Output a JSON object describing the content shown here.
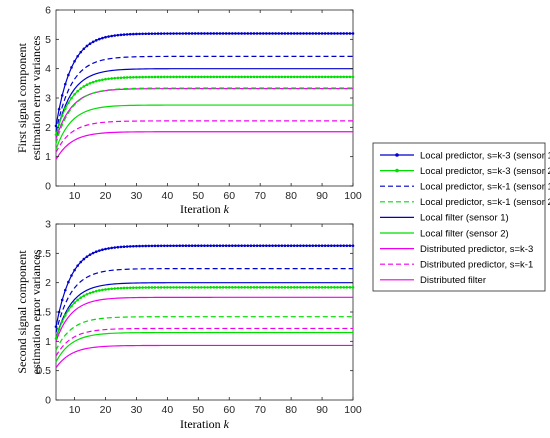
{
  "chart_data": [
    {
      "type": "line",
      "xlabel": "Iteration",
      "xlabel_var": "k",
      "ylabel": [
        "First signal component",
        "estimation error variances"
      ],
      "xlim": [
        4,
        100
      ],
      "ylim": [
        0,
        6
      ],
      "xticks": [
        10,
        20,
        30,
        40,
        50,
        60,
        70,
        80,
        90,
        100
      ],
      "yticks": [
        0,
        1,
        2,
        3,
        4,
        5,
        6
      ],
      "grid": false,
      "series": [
        {
          "name": "Local predictor, s=k-3 (sensor 1)",
          "color": "#0000cc",
          "style": "solid",
          "marker": "dot",
          "y0": 2.05,
          "yinf": 5.2
        },
        {
          "name": "Local predictor, s=k-3 (sensor 2)",
          "color": "#00dd00",
          "style": "solid",
          "marker": "dot",
          "y0": 1.75,
          "yinf": 3.72
        },
        {
          "name": "Local predictor, s=k-1 (sensor 1)",
          "color": "#0000cc",
          "style": "dashed",
          "marker": "none",
          "y0": 1.85,
          "yinf": 4.42
        },
        {
          "name": "Local predictor, s=k-1 (sensor 2)",
          "color": "#00dd00",
          "style": "dashed",
          "marker": "none",
          "y0": 1.45,
          "yinf": 3.34
        },
        {
          "name": "Local filter (sensor 1)",
          "color": "#0000cc",
          "style": "solid",
          "marker": "none",
          "y0": 1.7,
          "yinf": 4.0
        },
        {
          "name": "Local filter (sensor 2)",
          "color": "#00dd00",
          "style": "solid",
          "marker": "none",
          "y0": 1.25,
          "yinf": 2.76
        },
        {
          "name": "Distributed predictor, s=k-3",
          "color": "#ee00ee",
          "style": "solid",
          "marker": "none",
          "y0": 1.6,
          "yinf": 3.32
        },
        {
          "name": "Distributed predictor, s=k-1",
          "color": "#ee00ee",
          "style": "dashed",
          "marker": "none",
          "y0": 1.15,
          "yinf": 2.22
        },
        {
          "name": "Distributed filter",
          "color": "#ee00ee",
          "style": "solid",
          "marker": "none",
          "y0": 0.9,
          "yinf": 1.85
        }
      ]
    },
    {
      "type": "line",
      "xlabel": "Iteration",
      "xlabel_var": "k",
      "ylabel": [
        "Second signal component",
        "estimation error variances"
      ],
      "xlim": [
        4,
        100
      ],
      "ylim": [
        0,
        3
      ],
      "xticks": [
        10,
        20,
        30,
        40,
        50,
        60,
        70,
        80,
        90,
        100
      ],
      "yticks": [
        0,
        0.5,
        1,
        1.5,
        2,
        2.5,
        3
      ],
      "grid": false,
      "series": [
        {
          "name": "Local predictor, s=k-3 (sensor 1)",
          "color": "#0000cc",
          "style": "solid",
          "marker": "dot",
          "y0": 1.25,
          "yinf": 2.63
        },
        {
          "name": "Local predictor, s=k-3 (sensor 2)",
          "color": "#00dd00",
          "style": "solid",
          "marker": "dot",
          "y0": 1.05,
          "yinf": 1.92
        },
        {
          "name": "Local predictor, s=k-1 (sensor 1)",
          "color": "#0000cc",
          "style": "dashed",
          "marker": "none",
          "y0": 1.15,
          "yinf": 2.24
        },
        {
          "name": "Local predictor, s=k-1 (sensor 2)",
          "color": "#00dd00",
          "style": "dashed",
          "marker": "none",
          "y0": 0.85,
          "yinf": 1.42
        },
        {
          "name": "Local filter (sensor 1)",
          "color": "#0000cc",
          "style": "solid",
          "marker": "none",
          "y0": 1.05,
          "yinf": 2.0
        },
        {
          "name": "Local filter (sensor 2)",
          "color": "#00dd00",
          "style": "solid",
          "marker": "none",
          "y0": 0.65,
          "yinf": 1.15
        },
        {
          "name": "Distributed predictor, s=k-3",
          "color": "#ee00ee",
          "style": "solid",
          "marker": "none",
          "y0": 1.0,
          "yinf": 1.75
        },
        {
          "name": "Distributed predictor, s=k-1",
          "color": "#ee00ee",
          "style": "dashed",
          "marker": "none",
          "y0": 0.75,
          "yinf": 1.22
        },
        {
          "name": "Distributed filter",
          "color": "#ee00ee",
          "style": "solid",
          "marker": "none",
          "y0": 0.55,
          "yinf": 0.93
        }
      ]
    }
  ],
  "legend": {
    "placement": "right",
    "entries": [
      {
        "label": "Local predictor, s=k-3 (sensor 1)",
        "color": "#0000cc",
        "style": "solid",
        "marker": "dot"
      },
      {
        "label": "Local predictor, s=k-3 (sensor 2)",
        "color": "#00dd00",
        "style": "solid",
        "marker": "dot"
      },
      {
        "label": "Local predictor, s=k-1 (sensor 1)",
        "color": "#0000cc",
        "style": "dashed",
        "marker": "none"
      },
      {
        "label": "Local predictor, s=k-1 (sensor 2)",
        "color": "#00dd00",
        "style": "dashed",
        "marker": "none"
      },
      {
        "label": "Local filter (sensor 1)",
        "color": "#0000cc",
        "style": "solid",
        "marker": "none"
      },
      {
        "label": "Local filter (sensor 2)",
        "color": "#00dd00",
        "style": "solid",
        "marker": "none"
      },
      {
        "label": "Distributed predictor, s=k-3",
        "color": "#ee00ee",
        "style": "solid",
        "marker": "none"
      },
      {
        "label": "Distributed predictor, s=k-1",
        "color": "#ee00ee",
        "style": "dashed",
        "marker": "none"
      },
      {
        "label": "Distributed filter",
        "color": "#ee00ee",
        "style": "solid",
        "marker": "none"
      }
    ]
  }
}
